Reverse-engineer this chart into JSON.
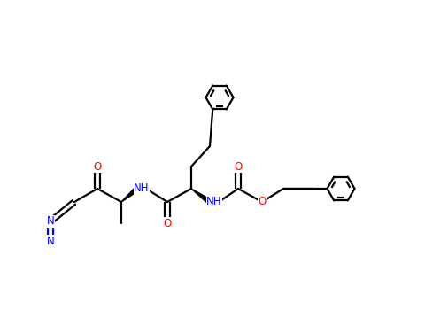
{
  "bg_color": "#ffffff",
  "bond_color": "#000000",
  "n_color": "#0000ff",
  "o_color": "#ff0000",
  "lw": 1.6,
  "figsize": [
    4.8,
    3.59
  ],
  "dpi": 100,
  "xlim": [
    0,
    48
  ],
  "ylim": [
    0,
    35.9
  ]
}
